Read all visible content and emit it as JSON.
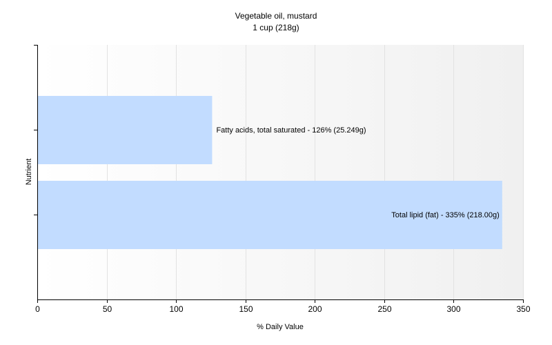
{
  "chart_data": {
    "type": "bar",
    "orientation": "horizontal",
    "title": "Vegetable oil, mustard",
    "subtitle": "1 cup (218g)",
    "xlabel": "% Daily Value",
    "ylabel": "Nutrient",
    "xlim": [
      0,
      350
    ],
    "xticks": [
      0,
      50,
      100,
      150,
      200,
      250,
      300,
      350
    ],
    "grid": true,
    "legend": "none",
    "categories": [
      "Fatty acids, total saturated",
      "Total lipid (fat)"
    ],
    "values": [
      126,
      335
    ],
    "labels": [
      "Fatty acids, total saturated - 126% (25.249g)",
      "Total lipid (fat) - 335% (218.00g)"
    ],
    "colors": {
      "bar": "#c2dcff",
      "grid": "#e2e2e2",
      "axis": "#000000",
      "plot_background_start": "#ffffff",
      "plot_background_end": "#f0f0f0"
    }
  }
}
